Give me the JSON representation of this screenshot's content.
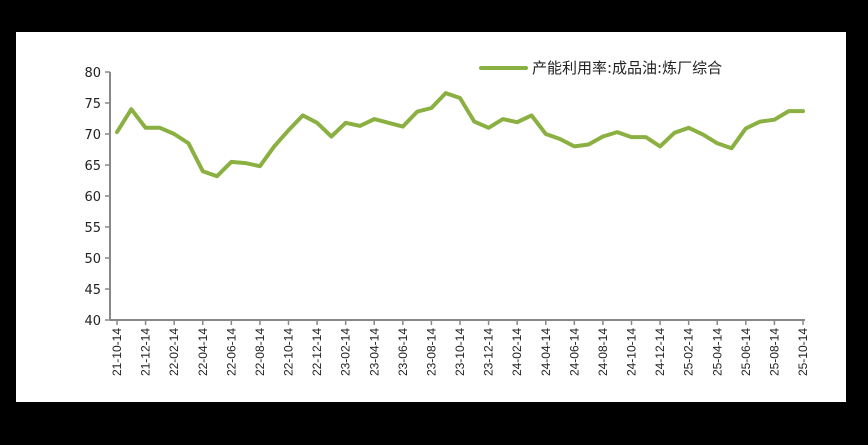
{
  "chart_data": {
    "type": "line",
    "title": "",
    "xlabel": "",
    "ylabel": "",
    "ylim": [
      40,
      80
    ],
    "yticks": [
      40,
      45,
      50,
      55,
      60,
      65,
      70,
      75,
      80
    ],
    "grid": false,
    "legend_position": "top-right",
    "xtick_labels": [
      "21-10-14",
      "21-12-14",
      "22-02-14",
      "22-04-14",
      "22-06-14",
      "22-08-14",
      "22-10-14",
      "22-12-14",
      "23-02-14",
      "23-04-14",
      "23-06-14",
      "23-08-14",
      "23-10-14",
      "23-12-14",
      "24-02-14",
      "24-04-14",
      "24-06-14",
      "24-08-14",
      "24-10-14",
      "24-12-14",
      "25-02-14",
      "25-04-14",
      "25-06-14",
      "25-08-14",
      "25-10-14"
    ],
    "x": [
      "21-10-14",
      "21-11-14",
      "21-12-14",
      "22-01-14",
      "22-02-14",
      "22-03-14",
      "22-04-14",
      "22-05-14",
      "22-06-14",
      "22-07-14",
      "22-08-14",
      "22-09-14",
      "22-10-14",
      "22-11-14",
      "22-12-14",
      "23-01-14",
      "23-02-14",
      "23-03-14",
      "23-04-14",
      "23-05-14",
      "23-06-14",
      "23-07-14",
      "23-08-14",
      "23-09-14",
      "23-10-14",
      "23-11-14",
      "23-12-14",
      "24-01-14",
      "24-02-14",
      "24-03-14",
      "24-04-14",
      "24-05-14",
      "24-06-14",
      "24-07-14",
      "24-08-14",
      "24-09-14",
      "24-10-14",
      "24-11-14",
      "24-12-14",
      "25-01-14",
      "25-02-14",
      "25-03-14",
      "25-04-14",
      "25-05-14",
      "25-06-14",
      "25-07-14",
      "25-08-14",
      "25-09-14",
      "25-10-14"
    ],
    "series": [
      {
        "name": "产能利用率:成品油:炼厂综合",
        "color": "#8bb042",
        "values": [
          70.3,
          74.0,
          71.0,
          71.0,
          70.0,
          68.5,
          64.0,
          63.2,
          65.5,
          65.3,
          64.8,
          68.0,
          70.6,
          73.0,
          71.8,
          69.6,
          71.8,
          71.3,
          72.4,
          71.8,
          71.2,
          73.6,
          74.2,
          76.6,
          75.8,
          72.0,
          71.0,
          72.4,
          71.9,
          73.0,
          70.0,
          69.2,
          68.0,
          68.3,
          69.6,
          70.3,
          69.5,
          69.5,
          68.0,
          70.2,
          71.0,
          69.9,
          68.5,
          67.7,
          70.9,
          72.0,
          72.3,
          73.7,
          73.7
        ]
      }
    ]
  },
  "legend": {
    "label": "产能利用率:成品油:炼厂综合",
    "color": "#8bb042"
  },
  "axis_color": "#888888"
}
